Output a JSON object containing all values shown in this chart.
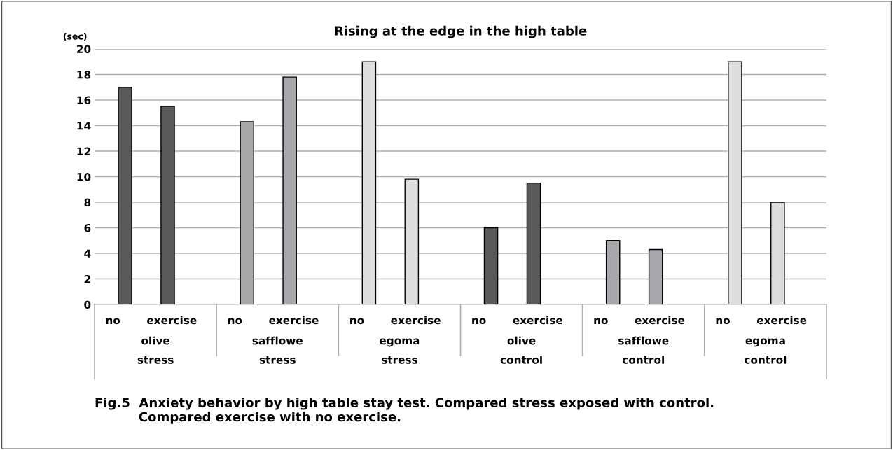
{
  "chart_data": {
    "type": "bar",
    "title": "Rising at the edge in the high table",
    "ylabel": "(sec)",
    "categories": [
      "no",
      "exercise",
      "no",
      "exercise",
      "no",
      "exercise",
      "no",
      "exercise",
      "no",
      "exercise",
      "no",
      "exercise"
    ],
    "values": [
      17,
      15.5,
      14.3,
      17.8,
      19,
      9.8,
      6,
      9.5,
      5,
      4.3,
      19,
      8
    ],
    "colors": [
      "#58595b",
      "#58595b",
      "#a7a8ab",
      "#a7a8ab",
      "#dcddde",
      "#dcddde",
      "#58595b",
      "#58595b",
      "#a7a8ab",
      "#a7a8ab",
      "#dcddde",
      "#dcddde"
    ],
    "ylim": [
      0,
      20
    ],
    "yticks": [
      0,
      2,
      4,
      6,
      8,
      10,
      12,
      14,
      16,
      18,
      20
    ],
    "grid": "y",
    "annotations": [
      "olive",
      "stress",
      "safflowe",
      "stress",
      "egoma",
      "stress",
      "olive",
      "control",
      "safflowe",
      "control",
      "egoma",
      "control",
      "Fig.5  Anxiety behavior by high table stay test. Compared stress exposed with control.\n          Compared exercise with no exercise."
    ]
  }
}
